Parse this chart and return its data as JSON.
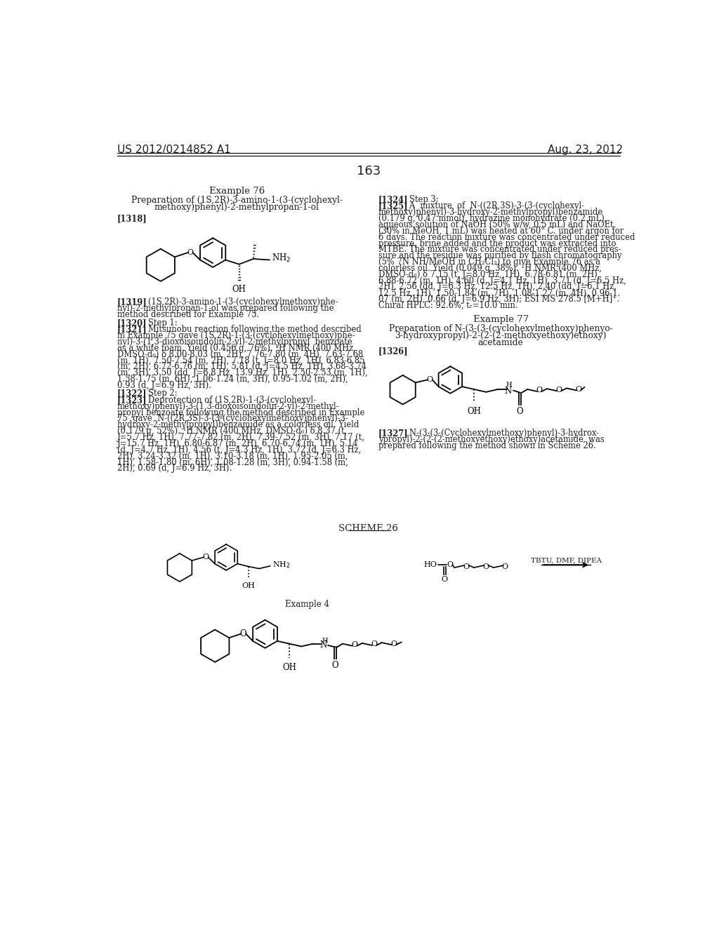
{
  "patent_number": "US 2012/0214852 A1",
  "date": "Aug. 23, 2012",
  "page_number": "163",
  "background_color": "#ffffff",
  "text_color": "#231f20",
  "example76_title": "Example 76",
  "example76_subtitle_l1": "Preparation of (1S,2R)-3-amino-1-(3-(cyclohexyl-",
  "example76_subtitle_l2": "methoxy)phenyl)-2-methylpropan-1-ol",
  "tag_1318": "[1318]",
  "tag_1319": "[1319]",
  "body_1319_l1": "   (1S,2R)-3-amino-1-(3-(cyclohexylmethoxy)phe-",
  "body_1319_l2": "nyl)-2-methylpropan-1-ol was prepared following the",
  "body_1319_l3": "method described for Example 75.",
  "tag_1320": "[1320]",
  "body_1320": "   Step 1:",
  "tag_1321": "[1321]",
  "body_1321_lines": [
    "   Mitsunobu reaction following the method described",
    "in Example 75 gave (1S,2R)-1-(3-(cyclohexylmethoxy)phe-",
    "nyl)-3-(1,3-dioxoisoindolin-2-yl)-2-methylpropyl  benzoate",
    "as a white foam. Yield (0.456 g, 76%). ¹H NMR (400 MHz,",
    "DMSO-d₆) δ 8.00-8.03 (m, 2H), 7.76-7.80 (m, 4H), 7.63-7.68",
    "(m, 1H), 7.50-7.54 (m, 2H), 7.18 (t, J=8.0 Hz, 1H), 6.83-6.85",
    "(m, 2H), 6.72-6.76 (m, 1H), 5.81 (d, J=4.5 Hz, 1H), 3.68-3.74",
    "(m, 3H), 3.50 (dd, J=6.8 Hz, 13.9 Hz, 1H), 2.50-2.53 (m, 1H),",
    "1.58-1.75 (m, 6H), 1.06-1.24 (m, 3H), 0.95-1.02 (m, 2H),",
    "0.93 (d, J=6.9 Hz, 3H)."
  ],
  "tag_1322": "[1322]",
  "body_1322": "   Step 2:",
  "tag_1323": "[1323]",
  "body_1323_lines": [
    "   Deprotection of (1S,2R)-1-(3-(cyclohexyl-",
    "methoxy)phenyl)-3-(1,3-dioxoisoindolin-2-yl)-2-methyl-",
    "propyl benzoate following the method described in Example",
    "75  gave  N-((2R,3S)-3-(3-(cyclohexylmethoxy)phenyl)-3-",
    "hydroxy-2-methylpropyl)benzamide as a colorless oil. Yield",
    "(0.179 g, 52%). ¹H NMR (400 MHz, DMSO-d₆) δ 8.37 (t,",
    "J=5.7 Hz, 1H), 7.77-7.82 (m, 2H), 7.39-7.52 (m, 3H), 7.17 (t,",
    "J=15.7 Hz, 1H), 6.80-6.87 (m, 2H), 6.70-6.74 (m, 1H), 5.14",
    "(d, J=4.7 Hz, 1H), 4.56 (t, J=4.3 Hz, 1H), 3.72 (d, J=6.3 Hz,",
    "2H), 3.24-3.32 (m, 1H), 3.10-3.18 (m, 1H), 1.95-2.05 (m,",
    "1H), 1.58-1.80 (m, 6H), 1.08-1.28 (m, 3H), 0.94-1.58 (m,",
    "2H), 0.69 (d, J=6.9 Hz, 3H)."
  ],
  "tag_1324": "[1324]",
  "body_1324": "   Step 3:",
  "tag_1325": "[1325]",
  "body_1325_lines": [
    "   A  mixture  of  N-((2R,3S)-3-(3-(cyclohexyl-",
    "methoxy)phenyl)-3-hydroxy-2-methylpropyl)benzamide",
    "(0.179 g, 0.47 mmol), hydrazine monohydrate (0.2 mL),",
    "aqueous solution of NaOH (50% w/w, 0.5 mL) and NaOEt",
    "(30% in MeOH, 1 mL) was heated at 60° C. under argon for",
    "6 days. The reaction mixture was concentrated under reduced",
    "pressure, brine added and the product was extracted into",
    "MTBE. The mixture was concentrated under reduced pres-",
    "sure and the residue was purified by flash chromatography",
    "(5% 7N NH/MeOH in CH₂Cl₂) to give Example 76 as a",
    "colorless oil. Yield (0.049 g, 38%). ¹H NMR (400 MHz,",
    "DMSO-d₆) δ 7.15 (t, J=8.0 Hz, 1H), 6.78-6.81 (m, 2H),",
    "6.88-6.72 (m, 1H), 4.60 (d, J=4.1 Hz, 1H), 3.71 (d, J=6.5 Hz,",
    "2H), 2.56 (dd, J=6.3 Hz, 12.5 Hz, 1H), 2.40 (dd, J=6.1 Hz,",
    "12.5 Hz, 1H), 1.50-1.84 (m, 7H), 1.08-1.27 (m, 4H), 0.96-1.",
    "07 (m, 2H), 0.66 (d, J=6.9 Hz, 3H); ESI MS 278.5 [M+H]⁺.",
    "Chiral HPLC: 92.6%, tᵣ=10.0 min."
  ],
  "example77_title": "Example 77",
  "example77_subtitle_l1": "Preparation of N-(3-(3-(cyclohexylmethoxy)phenyo-",
  "example77_subtitle_l2": "3-hydroxypropyl)-2-(2-(2-methoxyethoxy)ethoxy)",
  "example77_subtitle_l3": "acetamide",
  "tag_1326": "[1326]",
  "tag_1327": "[1327]",
  "body_1327_lines": [
    "   N-(3-(3-(Cyclohexylmethoxy)phenyl)-3-hydrox-",
    "ypropyl)-2-(2-(2-methoxyethoxy)ethoxy)acetamide  was",
    "prepared following the method shown in Scheme 26."
  ],
  "scheme26_label": "SCHEME 26",
  "example4_label": "Example 4",
  "tbtu_label": "TBTU, DMF, DIPEA"
}
